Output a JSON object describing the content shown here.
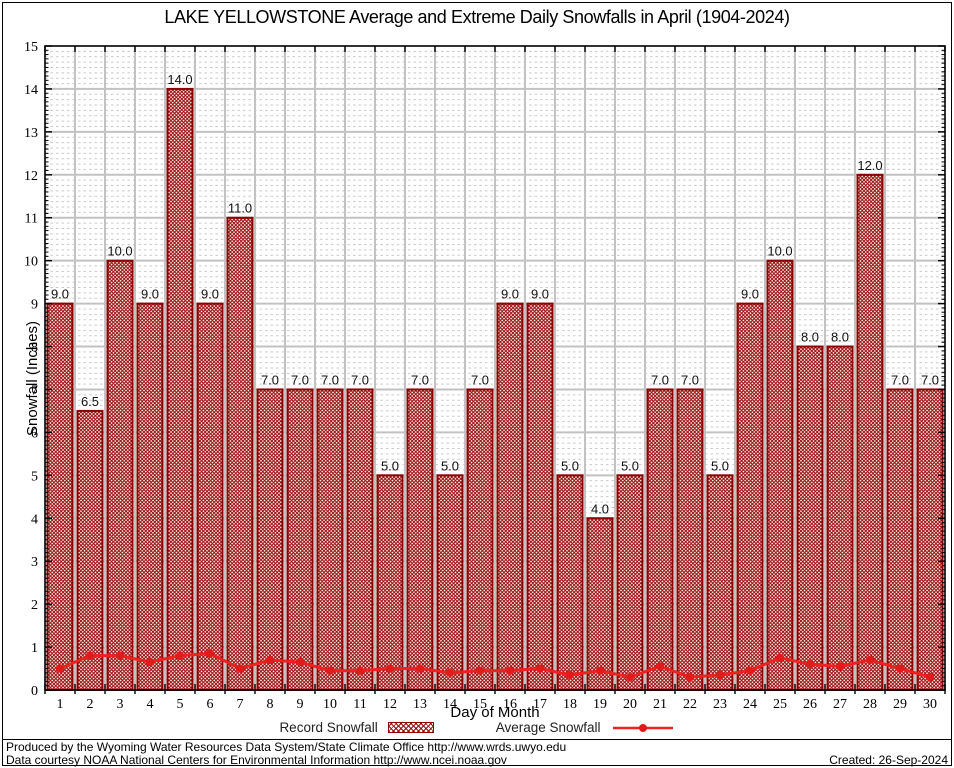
{
  "title": "LAKE YELLOWSTONE Average and Extreme Daily Snowfalls in April (1904-2024)",
  "chart_data": {
    "type": "bar",
    "title": "LAKE YELLOWSTONE Average and Extreme Daily Snowfalls in April (1904-2024)",
    "xlabel": "Day of Month",
    "ylabel": "Snowfall (Inches)",
    "ylim": [
      0,
      15
    ],
    "ytick_step": 1,
    "grid": true,
    "legend_position": "bottom",
    "categories": [
      1,
      2,
      3,
      4,
      5,
      6,
      7,
      8,
      9,
      10,
      11,
      12,
      13,
      14,
      15,
      16,
      17,
      18,
      19,
      20,
      21,
      22,
      23,
      24,
      25,
      26,
      27,
      28,
      29,
      30
    ],
    "series": [
      {
        "name": "Record Snowfall",
        "type": "bar",
        "color": "#8b0000",
        "hatch": "crosshatch",
        "values": [
          9.0,
          6.5,
          10.0,
          9.0,
          14.0,
          9.0,
          11.0,
          7.0,
          7.0,
          7.0,
          7.0,
          5.0,
          7.0,
          5.0,
          7.0,
          9.0,
          9.0,
          5.0,
          4.0,
          5.0,
          7.0,
          7.0,
          5.0,
          9.0,
          10.0,
          8.0,
          8.0,
          12.0,
          7.0,
          7.0
        ]
      },
      {
        "name": "Average Snowfall",
        "type": "line",
        "color": "#ee2020",
        "values": [
          0.5,
          0.8,
          0.8,
          0.65,
          0.8,
          0.85,
          0.5,
          0.7,
          0.65,
          0.45,
          0.45,
          0.5,
          0.5,
          0.4,
          0.45,
          0.45,
          0.5,
          0.35,
          0.45,
          0.3,
          0.55,
          0.3,
          0.35,
          0.45,
          0.75,
          0.6,
          0.55,
          0.7,
          0.5,
          0.3
        ]
      }
    ]
  },
  "legend": {
    "record_label": "Record Snowfall",
    "average_label": "Average Snowfall"
  },
  "footer": {
    "line1": "Produced by the Wyoming Water Resources Data System/State Climate Office http://www.wrds.uwyo.edu",
    "line2": "Data courtesy NOAA National Centers for Environmental Information http://www.ncei.noaa.gov",
    "created": "Created: 26-Sep-2024"
  }
}
